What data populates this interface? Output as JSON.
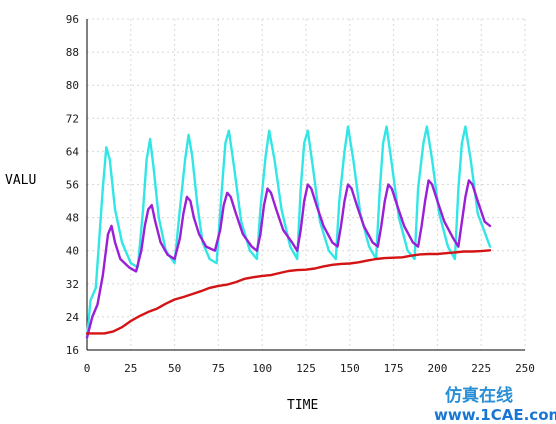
{
  "chart_data": {
    "type": "line",
    "xlabel": "TIME",
    "ylabel": "VALU",
    "xlim": [
      0,
      250
    ],
    "ylim": [
      16,
      96
    ],
    "xticks": [
      0,
      25,
      50,
      75,
      100,
      125,
      150,
      175,
      200,
      225,
      250
    ],
    "yticks": [
      16,
      24,
      32,
      40,
      48,
      56,
      64,
      72,
      80,
      88,
      96
    ],
    "grid": true,
    "series": [
      {
        "color": "#33e6e6",
        "x": [
          0,
          2,
          5,
          9,
          11,
          13,
          16,
          20,
          25,
          29,
          32,
          34,
          36,
          38,
          41,
          45,
          50,
          53,
          56,
          58,
          60,
          63,
          66,
          70,
          74,
          77,
          79,
          81,
          84,
          88,
          93,
          97,
          99,
          102,
          104,
          107,
          111,
          116,
          120,
          122,
          124,
          126,
          129,
          133,
          138,
          142,
          144,
          147,
          149,
          152,
          156,
          161,
          165,
          167,
          169,
          171,
          174,
          178,
          183,
          187,
          189,
          192,
          194,
          197,
          201,
          206,
          210,
          212,
          214,
          216,
          219,
          223,
          230
        ],
        "y": [
          19,
          28,
          31,
          55,
          65,
          62,
          50,
          42,
          37,
          36,
          50,
          62,
          67,
          60,
          48,
          40,
          37,
          50,
          62,
          68,
          63,
          51,
          42,
          38,
          37,
          55,
          66,
          69,
          60,
          47,
          40,
          38,
          50,
          63,
          69,
          62,
          50,
          41,
          38,
          55,
          66,
          69,
          60,
          47,
          40,
          38,
          52,
          64,
          70,
          62,
          49,
          41,
          38,
          54,
          66,
          70,
          61,
          48,
          40,
          38,
          55,
          66,
          70,
          62,
          49,
          41,
          38,
          55,
          66,
          70,
          62,
          49,
          41
        ]
      },
      {
        "color": "#9b1fd6",
        "x": [
          0,
          3,
          6,
          9,
          12,
          14,
          16,
          19,
          24,
          28,
          31,
          33,
          35,
          37,
          39,
          42,
          46,
          50,
          53,
          55,
          57,
          59,
          61,
          64,
          68,
          73,
          76,
          78,
          80,
          82,
          85,
          89,
          94,
          97,
          99,
          101,
          103,
          105,
          108,
          112,
          117,
          120,
          122,
          124,
          126,
          128,
          131,
          135,
          140,
          143,
          145,
          147,
          149,
          151,
          154,
          158,
          163,
          166,
          168,
          170,
          172,
          174,
          177,
          181,
          186,
          189,
          191,
          193,
          195,
          197,
          200,
          204,
          209,
          212,
          214,
          216,
          218,
          220,
          223,
          227,
          230
        ],
        "y": [
          19,
          24,
          27,
          34,
          44,
          46,
          42,
          38,
          36,
          35,
          40,
          46,
          50,
          51,
          47,
          42,
          39,
          38,
          43,
          49,
          53,
          52,
          48,
          44,
          41,
          40,
          45,
          51,
          54,
          53,
          49,
          44,
          41,
          40,
          44,
          51,
          55,
          54,
          50,
          45,
          42,
          40,
          45,
          52,
          56,
          55,
          51,
          46,
          42,
          41,
          46,
          52,
          56,
          55,
          51,
          46,
          42,
          41,
          46,
          52,
          56,
          55,
          51,
          46,
          42,
          41,
          46,
          52,
          57,
          56,
          52,
          47,
          43,
          41,
          47,
          53,
          57,
          56,
          52,
          47,
          46
        ]
      },
      {
        "color": "#d41414",
        "x": [
          0,
          5,
          10,
          15,
          20,
          25,
          30,
          35,
          40,
          45,
          50,
          55,
          60,
          65,
          70,
          75,
          80,
          85,
          90,
          95,
          100,
          105,
          110,
          115,
          120,
          125,
          130,
          135,
          140,
          145,
          150,
          155,
          160,
          165,
          170,
          175,
          180,
          185,
          190,
          195,
          200,
          205,
          210,
          215,
          220,
          225,
          230
        ],
        "y": [
          20,
          20,
          20,
          20.5,
          21.5,
          23,
          24.2,
          25.2,
          26,
          27.2,
          28.2,
          28.8,
          29.5,
          30.2,
          31,
          31.5,
          31.8,
          32.4,
          33.2,
          33.6,
          33.9,
          34.1,
          34.6,
          35.1,
          35.3,
          35.4,
          35.7,
          36.2,
          36.6,
          36.8,
          36.9,
          37.2,
          37.6,
          38,
          38.2,
          38.3,
          38.4,
          38.8,
          39.1,
          39.2,
          39.2,
          39.4,
          39.6,
          39.8,
          39.8,
          39.9,
          40.1
        ]
      }
    ]
  },
  "watermark": {
    "line1": "仿真在线",
    "line2": "www.1CAE.com"
  }
}
